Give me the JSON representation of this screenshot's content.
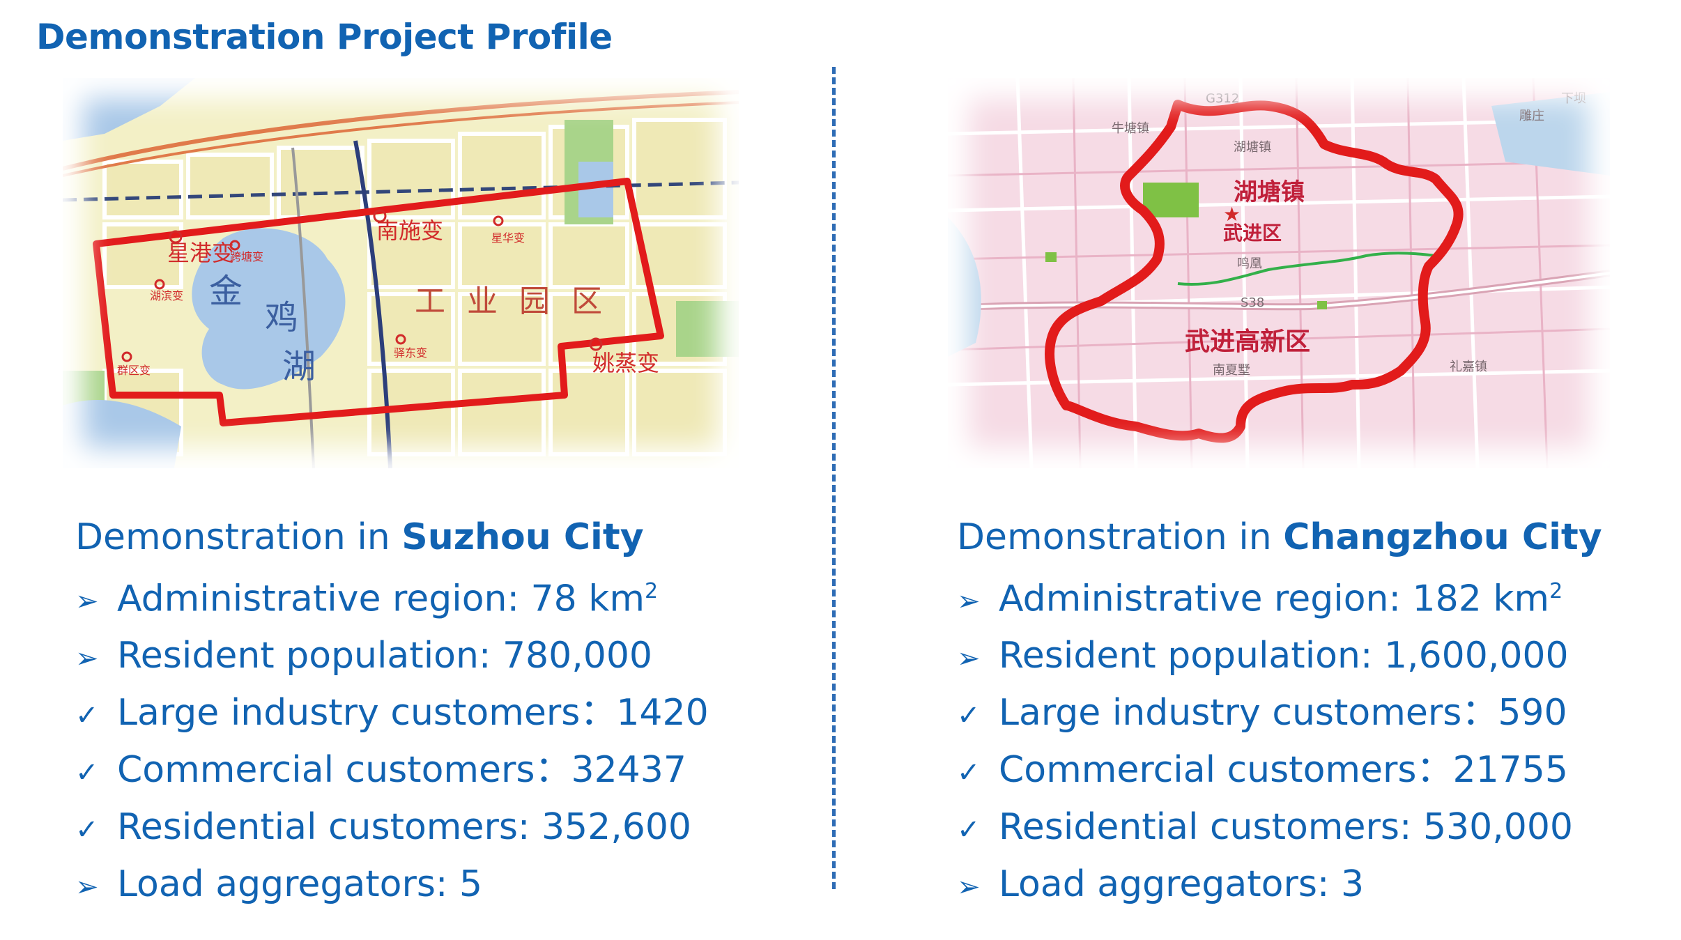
{
  "title": "Demonstration Project Profile",
  "colors": {
    "text": "#1163b2",
    "divider": "#2e6cb5",
    "boundary": "#e21b1b",
    "lake": "#a9c8e8",
    "pink_map": "#f6dbe5",
    "road_green": "#33b04a",
    "yellow_map": "#f3f0c6"
  },
  "suzhou": {
    "heading_prefix": "Demonstration in ",
    "city": "Suzhou City",
    "map_labels": {
      "station_1": "南施变",
      "station_2": "星港变",
      "station_3": "姚蒸变",
      "station_4": "湖滨变",
      "station_5": "群区变",
      "station_6": "星华变",
      "station_7": "驿东变",
      "station_8": "跨塘变",
      "lake_1": "金",
      "lake_2": "鸡",
      "lake_3": "湖",
      "zone_1": "工",
      "zone_2": "业",
      "zone_3": "园",
      "zone_4": "区"
    },
    "facts": [
      {
        "icon": "arrow-bullet-icon",
        "marker": "➢",
        "label": "Administrative region: 78 km",
        "sup": "2"
      },
      {
        "icon": "arrow-bullet-icon",
        "marker": "➢",
        "label": "Resident population: 780,000",
        "sup": ""
      },
      {
        "icon": "check-bullet-icon",
        "marker": "✓",
        "label": "Large industry customers：1420",
        "sup": ""
      },
      {
        "icon": "check-bullet-icon",
        "marker": "✓",
        "label": "Commercial customers：32437",
        "sup": ""
      },
      {
        "icon": "check-bullet-icon",
        "marker": "✓",
        "label": "Residential customers: 352,600",
        "sup": ""
      },
      {
        "icon": "arrow-bullet-icon",
        "marker": "➢",
        "label": "Load aggregators: 5",
        "sup": ""
      }
    ]
  },
  "changzhou": {
    "heading_prefix": "Demonstration in ",
    "city": "Changzhou City",
    "map_labels": {
      "town_1": "湖塘镇",
      "district_1": "武进区",
      "zone_1": "武进高新区",
      "town_2": "牛塘镇",
      "town_3": "礼嘉镇",
      "road_1": "S38",
      "road_2": "G312",
      "town_4": "湖塘镇",
      "town_5": "鸣凰",
      "town_6": "南夏墅",
      "town_7": "雕庄",
      "town_8": "下坝"
    },
    "facts": [
      {
        "icon": "arrow-bullet-icon",
        "marker": "➢",
        "label": "Administrative region: 182 km",
        "sup": "2"
      },
      {
        "icon": "arrow-bullet-icon",
        "marker": "➢",
        "label": "Resident population: 1,600,000",
        "sup": ""
      },
      {
        "icon": "check-bullet-icon",
        "marker": "✓",
        "label": "Large industry customers：590",
        "sup": ""
      },
      {
        "icon": "check-bullet-icon",
        "marker": "✓",
        "label": "Commercial customers：21755",
        "sup": ""
      },
      {
        "icon": "check-bullet-icon",
        "marker": "✓",
        "label": "Residential customers: 530,000",
        "sup": ""
      },
      {
        "icon": "arrow-bullet-icon",
        "marker": "➢",
        "label": "Load aggregators: 3",
        "sup": ""
      }
    ]
  }
}
